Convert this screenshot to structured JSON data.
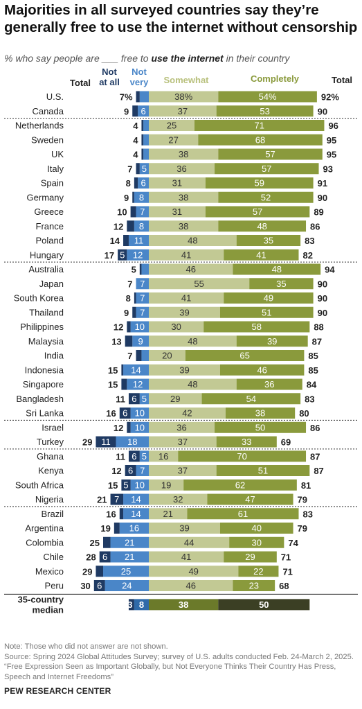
{
  "title": "Majorities in all surveyed countries say they’re generally free to use the internet without censorship",
  "subtitle": {
    "prefix": "% who say people are ___ free to ",
    "emphasis": "use the internet",
    "suffix": " in their country"
  },
  "colors": {
    "not_at_all": "#1f3a63",
    "not_very": "#4a86c8",
    "somewhat": "#c2c994",
    "completely": "#8a9a3c",
    "median_not_at_all": "#1f3a63",
    "median_not_very": "#2f6aa9",
    "median_somewhat": "#6b7a2a",
    "median_completely": "#3b3f24",
    "not_very_header": "#4a86c8",
    "not_at_all_header": "#1f3a63",
    "somewhat_header": "#b8c07c",
    "completely_header": "#8a9a3c"
  },
  "chart_data": {
    "type": "bar",
    "stacked": "diverging",
    "headers": {
      "total_left": "Total",
      "not_at_all": [
        "Not",
        "at all"
      ],
      "not_very": [
        "Not",
        "very"
      ],
      "somewhat": "Somewhat",
      "completely": "Completely",
      "total_right": "Total"
    },
    "series": [
      {
        "name": "Not at all"
      },
      {
        "name": "Not very"
      },
      {
        "name": "Somewhat"
      },
      {
        "name": "Completely"
      }
    ],
    "rows": [
      {
        "country": "U.S.",
        "not_total": "7%",
        "not_at_all": "",
        "not_very": "",
        "somewhat": "38%",
        "completely": "54%",
        "free_total": "92%",
        "na": 2,
        "nv": 5,
        "sw": 38,
        "cp": 54,
        "group": 0
      },
      {
        "country": "Canada",
        "not_total": "9",
        "not_at_all": "",
        "not_very": "6",
        "somewhat": "37",
        "completely": "53",
        "free_total": "90",
        "na": 3,
        "nv": 6,
        "sw": 37,
        "cp": 53,
        "group": 0
      },
      {
        "country": "Netherlands",
        "not_total": "4",
        "not_at_all": "",
        "not_very": "",
        "somewhat": "25",
        "completely": "71",
        "free_total": "96",
        "na": 1,
        "nv": 3,
        "sw": 25,
        "cp": 71,
        "group": 1
      },
      {
        "country": "Sweden",
        "not_total": "4",
        "not_at_all": "",
        "not_very": "",
        "somewhat": "27",
        "completely": "68",
        "free_total": "95",
        "na": 1,
        "nv": 3,
        "sw": 27,
        "cp": 68,
        "group": 1
      },
      {
        "country": "UK",
        "not_total": "4",
        "not_at_all": "",
        "not_very": "",
        "somewhat": "38",
        "completely": "57",
        "free_total": "95",
        "na": 1,
        "nv": 3,
        "sw": 38,
        "cp": 57,
        "group": 1
      },
      {
        "country": "Italy",
        "not_total": "7",
        "not_at_all": "",
        "not_very": "5",
        "somewhat": "36",
        "completely": "57",
        "free_total": "93",
        "na": 2,
        "nv": 5,
        "sw": 36,
        "cp": 57,
        "group": 1
      },
      {
        "country": "Spain",
        "not_total": "8",
        "not_at_all": "",
        "not_very": "6",
        "somewhat": "31",
        "completely": "59",
        "free_total": "91",
        "na": 2,
        "nv": 6,
        "sw": 31,
        "cp": 59,
        "group": 1
      },
      {
        "country": "Germany",
        "not_total": "9",
        "not_at_all": "",
        "not_very": "8",
        "somewhat": "38",
        "completely": "52",
        "free_total": "90",
        "na": 1,
        "nv": 8,
        "sw": 38,
        "cp": 52,
        "group": 1
      },
      {
        "country": "Greece",
        "not_total": "10",
        "not_at_all": "",
        "not_very": "7",
        "somewhat": "31",
        "completely": "57",
        "free_total": "89",
        "na": 3,
        "nv": 7,
        "sw": 31,
        "cp": 57,
        "group": 1
      },
      {
        "country": "France",
        "not_total": "12",
        "not_at_all": "",
        "not_very": "8",
        "somewhat": "38",
        "completely": "48",
        "free_total": "86",
        "na": 4,
        "nv": 8,
        "sw": 38,
        "cp": 48,
        "group": 1
      },
      {
        "country": "Poland",
        "not_total": "14",
        "not_at_all": "",
        "not_very": "11",
        "somewhat": "48",
        "completely": "35",
        "free_total": "83",
        "na": 3,
        "nv": 11,
        "sw": 48,
        "cp": 35,
        "group": 1
      },
      {
        "country": "Hungary",
        "not_total": "17",
        "not_at_all": "5",
        "not_very": "12",
        "somewhat": "41",
        "completely": "41",
        "free_total": "82",
        "na": 5,
        "nv": 12,
        "sw": 41,
        "cp": 41,
        "group": 1
      },
      {
        "country": "Australia",
        "not_total": "5",
        "not_at_all": "",
        "not_very": "",
        "somewhat": "46",
        "completely": "48",
        "free_total": "94",
        "na": 1,
        "nv": 4,
        "sw": 46,
        "cp": 48,
        "group": 2
      },
      {
        "country": "Japan",
        "not_total": "7",
        "not_at_all": "",
        "not_very": "7",
        "somewhat": "55",
        "completely": "35",
        "free_total": "90",
        "na": 0,
        "nv": 7,
        "sw": 55,
        "cp": 35,
        "group": 2
      },
      {
        "country": "South Korea",
        "not_total": "8",
        "not_at_all": "",
        "not_very": "7",
        "somewhat": "41",
        "completely": "49",
        "free_total": "90",
        "na": 1,
        "nv": 7,
        "sw": 41,
        "cp": 49,
        "group": 2
      },
      {
        "country": "Thailand",
        "not_total": "9",
        "not_at_all": "",
        "not_very": "7",
        "somewhat": "39",
        "completely": "51",
        "free_total": "90",
        "na": 2,
        "nv": 7,
        "sw": 39,
        "cp": 51,
        "group": 2
      },
      {
        "country": "Philippines",
        "not_total": "12",
        "not_at_all": "",
        "not_very": "10",
        "somewhat": "30",
        "completely": "58",
        "free_total": "88",
        "na": 2,
        "nv": 10,
        "sw": 30,
        "cp": 58,
        "group": 2
      },
      {
        "country": "Malaysia",
        "not_total": "13",
        "not_at_all": "",
        "not_very": "9",
        "somewhat": "48",
        "completely": "39",
        "free_total": "87",
        "na": 4,
        "nv": 9,
        "sw": 48,
        "cp": 39,
        "group": 2
      },
      {
        "country": "India",
        "not_total": "7",
        "not_at_all": "",
        "not_very": "",
        "somewhat": "20",
        "completely": "65",
        "free_total": "85",
        "na": 3,
        "nv": 4,
        "sw": 20,
        "cp": 65,
        "group": 2
      },
      {
        "country": "Indonesia",
        "not_total": "15",
        "not_at_all": "",
        "not_very": "14",
        "somewhat": "39",
        "completely": "46",
        "free_total": "85",
        "na": 1,
        "nv": 14,
        "sw": 39,
        "cp": 46,
        "group": 2
      },
      {
        "country": "Singapore",
        "not_total": "15",
        "not_at_all": "",
        "not_very": "12",
        "somewhat": "48",
        "completely": "36",
        "free_total": "84",
        "na": 3,
        "nv": 12,
        "sw": 48,
        "cp": 36,
        "group": 2
      },
      {
        "country": "Bangladesh",
        "not_total": "11",
        "not_at_all": "6",
        "not_very": "5",
        "somewhat": "29",
        "completely": "54",
        "free_total": "83",
        "na": 6,
        "nv": 5,
        "sw": 29,
        "cp": 54,
        "group": 2
      },
      {
        "country": "Sri Lanka",
        "not_total": "16",
        "not_at_all": "6",
        "not_very": "10",
        "somewhat": "42",
        "completely": "38",
        "free_total": "80",
        "na": 6,
        "nv": 10,
        "sw": 42,
        "cp": 38,
        "group": 2
      },
      {
        "country": "Israel",
        "not_total": "12",
        "not_at_all": "",
        "not_very": "10",
        "somewhat": "36",
        "completely": "50",
        "free_total": "86",
        "na": 2,
        "nv": 10,
        "sw": 36,
        "cp": 50,
        "group": 3
      },
      {
        "country": "Turkey",
        "not_total": "29",
        "not_at_all": "11",
        "not_very": "18",
        "somewhat": "37",
        "completely": "33",
        "free_total": "69",
        "na": 11,
        "nv": 18,
        "sw": 37,
        "cp": 33,
        "group": 3
      },
      {
        "country": "Ghana",
        "not_total": "11",
        "not_at_all": "6",
        "not_very": "5",
        "somewhat": "16",
        "completely": "70",
        "free_total": "87",
        "na": 6,
        "nv": 5,
        "sw": 16,
        "cp": 70,
        "group": 4
      },
      {
        "country": "Kenya",
        "not_total": "12",
        "not_at_all": "6",
        "not_very": "7",
        "somewhat": "37",
        "completely": "51",
        "free_total": "87",
        "na": 6,
        "nv": 7,
        "sw": 37,
        "cp": 51,
        "group": 4
      },
      {
        "country": "South Africa",
        "not_total": "15",
        "not_at_all": "5",
        "not_very": "10",
        "somewhat": "19",
        "completely": "62",
        "free_total": "81",
        "na": 5,
        "nv": 10,
        "sw": 19,
        "cp": 62,
        "group": 4
      },
      {
        "country": "Nigeria",
        "not_total": "21",
        "not_at_all": "7",
        "not_very": "14",
        "somewhat": "32",
        "completely": "47",
        "free_total": "79",
        "na": 7,
        "nv": 14,
        "sw": 32,
        "cp": 47,
        "group": 4
      },
      {
        "country": "Brazil",
        "not_total": "16",
        "not_at_all": "",
        "not_very": "14",
        "somewhat": "21",
        "completely": "61",
        "free_total": "83",
        "na": 2,
        "nv": 14,
        "sw": 21,
        "cp": 61,
        "group": 5
      },
      {
        "country": "Argentina",
        "not_total": "19",
        "not_at_all": "",
        "not_very": "16",
        "somewhat": "39",
        "completely": "40",
        "free_total": "79",
        "na": 3,
        "nv": 16,
        "sw": 39,
        "cp": 40,
        "group": 5
      },
      {
        "country": "Colombia",
        "not_total": "25",
        "not_at_all": "",
        "not_very": "21",
        "somewhat": "44",
        "completely": "30",
        "free_total": "74",
        "na": 4,
        "nv": 21,
        "sw": 44,
        "cp": 30,
        "group": 5
      },
      {
        "country": "Chile",
        "not_total": "28",
        "not_at_all": "6",
        "not_very": "21",
        "somewhat": "41",
        "completely": "29",
        "free_total": "71",
        "na": 6,
        "nv": 21,
        "sw": 41,
        "cp": 29,
        "group": 5
      },
      {
        "country": "Mexico",
        "not_total": "29",
        "not_at_all": "",
        "not_very": "25",
        "somewhat": "49",
        "completely": "22",
        "free_total": "71",
        "na": 4,
        "nv": 25,
        "sw": 49,
        "cp": 22,
        "group": 5
      },
      {
        "country": "Peru",
        "not_total": "30",
        "not_at_all": "6",
        "not_very": "24",
        "somewhat": "46",
        "completely": "23",
        "free_total": "68",
        "na": 6,
        "nv": 24,
        "sw": 46,
        "cp": 23,
        "group": 5
      }
    ],
    "median": {
      "label": [
        "35-country",
        "median"
      ],
      "not_at_all": "3",
      "not_very": "8",
      "somewhat": "38",
      "completely": "50",
      "na": 3,
      "nv": 8,
      "sw": 38,
      "cp": 50
    }
  },
  "notes": {
    "note": "Note: Those who did not answer are not shown.",
    "source": "Source: Spring 2024 Global Attitudes Survey; survey of U.S. adults conducted Feb. 24-March 2, 2025.",
    "report": "“Free Expression Seen as Important Globally, but Not Everyone Thinks Their Country Has Press, Speech and Internet Freedoms”"
  },
  "brand": "PEW RESEARCH CENTER"
}
